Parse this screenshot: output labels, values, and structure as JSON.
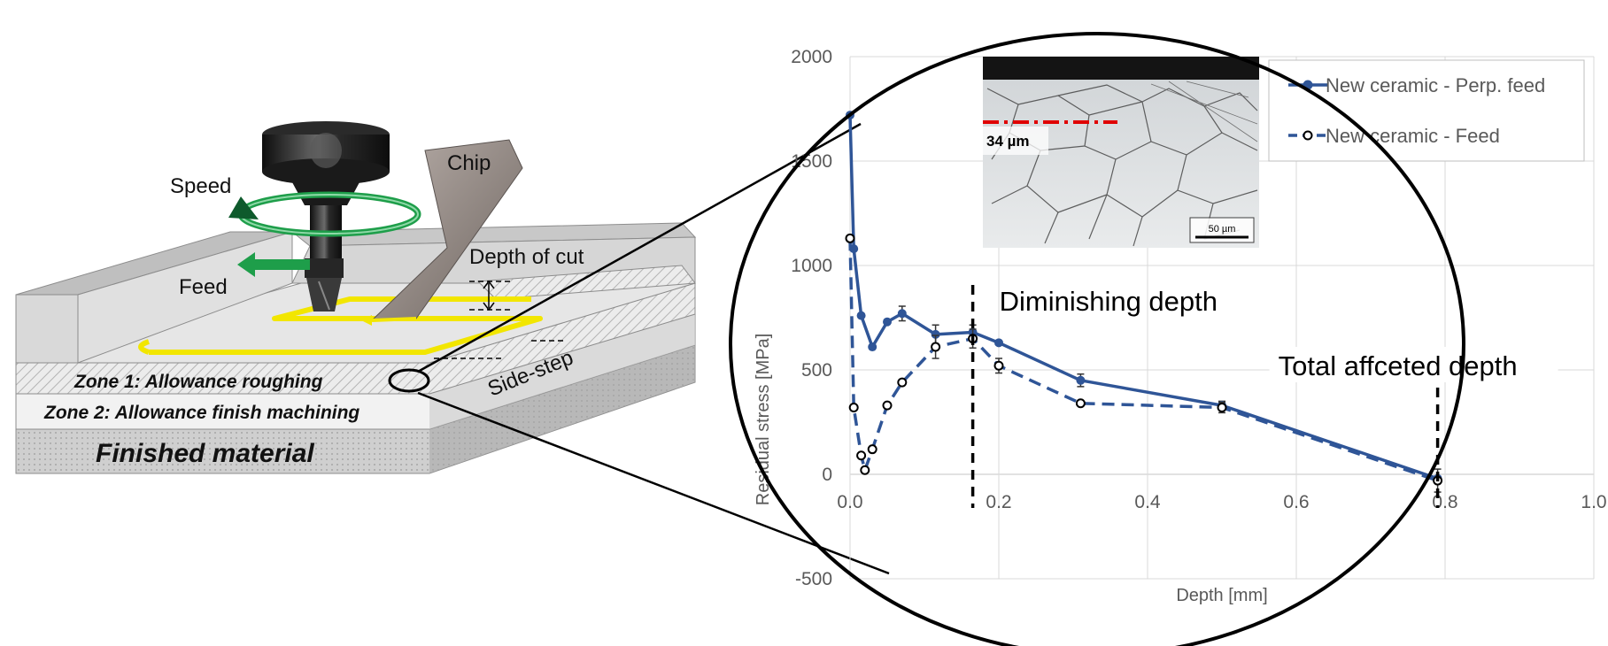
{
  "schematic": {
    "labels": {
      "speed": "Speed",
      "feed": "Feed",
      "chip": "Chip",
      "depth_of_cut": "Depth of cut",
      "side_step": "Side-step",
      "zone1": "Zone 1: Allowance roughing",
      "zone2": "Zone 2: Allowance finish machining",
      "finished": "Finished material"
    },
    "colors": {
      "speed_arrow": "#1e9e4a",
      "feed_arrow": "#1e9e4a",
      "toolpath": "#f2e600",
      "block_face": "#d9d9d9"
    }
  },
  "micrograph": {
    "depth_label": "34 µm",
    "scale_label": "50 µm",
    "marker_color": "#e00000"
  },
  "chart_data": {
    "type": "line",
    "xlabel": "Depth [mm]",
    "ylabel": "Residual stress [MPa]",
    "xlim": [
      0,
      1.0
    ],
    "ylim": [
      -500,
      2000
    ],
    "xticks": [
      0.0,
      0.2,
      0.4,
      0.6,
      0.8,
      1.0
    ],
    "xtick_labels": [
      "0.0",
      "0.2",
      "0.4",
      "0.6",
      "0.8",
      "1.0"
    ],
    "yticks": [
      -500,
      0,
      500,
      1000,
      1500,
      2000
    ],
    "ytick_labels": [
      "-500",
      "0",
      "500",
      "1000",
      "1500",
      "2000"
    ],
    "grid": true,
    "legend_position": "top-right",
    "series": [
      {
        "name": "New ceramic - Perp. feed",
        "color": "#2f5597",
        "style": "solid",
        "marker": "filled",
        "x": [
          0.0,
          0.005,
          0.015,
          0.03,
          0.05,
          0.07,
          0.115,
          0.165,
          0.2,
          0.31,
          0.5,
          0.79
        ],
        "y": [
          1720,
          1080,
          760,
          610,
          730,
          770,
          670,
          680,
          630,
          450,
          330,
          -20
        ],
        "err": [
          0,
          0,
          0,
          0,
          0,
          35,
          45,
          35,
          0,
          30,
          20,
          0
        ]
      },
      {
        "name": "New ceramic - Feed",
        "color": "#2f5597",
        "style": "dashed",
        "marker": "open",
        "x": [
          0.0,
          0.005,
          0.015,
          0.02,
          0.03,
          0.05,
          0.07,
          0.115,
          0.165,
          0.2,
          0.31,
          0.5,
          0.79
        ],
        "y": [
          1130,
          320,
          90,
          20,
          120,
          330,
          440,
          610,
          650,
          520,
          340,
          320,
          -30
        ],
        "err": [
          0,
          0,
          0,
          0,
          0,
          0,
          0,
          55,
          45,
          35,
          0,
          25,
          55
        ]
      }
    ],
    "annotations": [
      {
        "text": "Diminishing depth",
        "x": 0.165
      },
      {
        "text": "Total affceted depth",
        "x": 0.79
      }
    ]
  }
}
